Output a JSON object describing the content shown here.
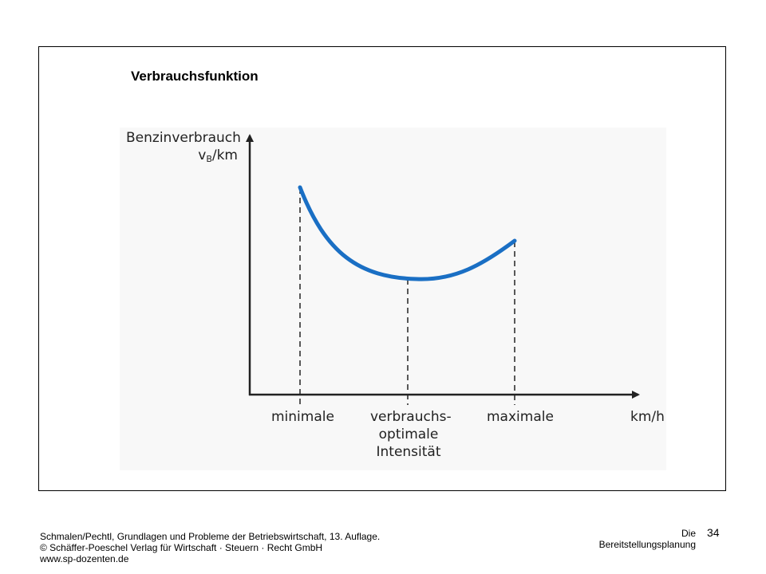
{
  "slide": {
    "title": "Verbrauchsfunktion"
  },
  "diagram": {
    "y_axis_label_line1": "Benzinverbrauch",
    "y_axis_label_v": "v",
    "y_axis_label_sub": "B",
    "y_axis_label_rest": "/km",
    "x_axis_unit": "km/h",
    "x_labels": {
      "minimal": "minimale",
      "optimal_line1": "verbrauchs-",
      "optimal_line2": "optimale",
      "optimal_line3": "Intensität",
      "maximal": "maximale"
    },
    "curve_color": "#1a6fc4",
    "axis_color": "#222222"
  },
  "footer": {
    "source_line1": "Schmalen/Pechtl, Grundlagen und Probleme der Betriebswirtschaft, 13. Auflage.",
    "source_line2": "© Schäffer-Poeschel Verlag für Wirtschaft · Steuern · Recht GmbH",
    "source_line3": "www.sp-dozenten.de",
    "chapter_line1": "Die",
    "chapter_line2": "Bereitstellungsplanung",
    "page_number": "34"
  }
}
